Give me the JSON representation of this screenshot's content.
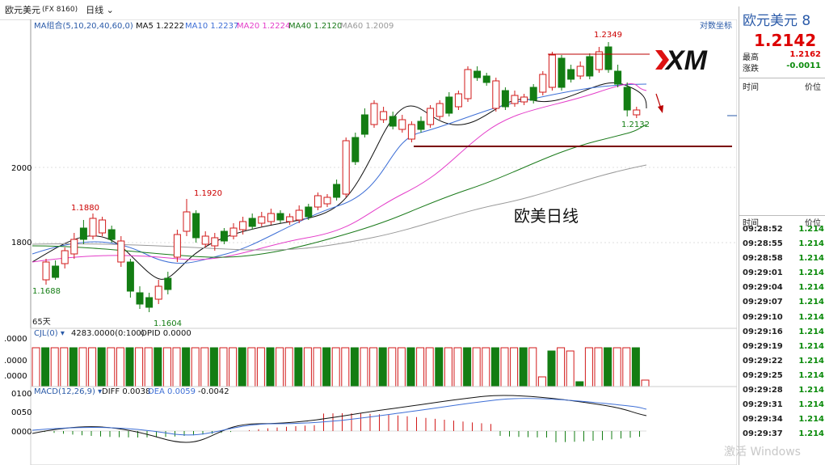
{
  "header": {
    "symbol": "欧元美元",
    "code": "(FX 8160)",
    "period": "日线",
    "period_arrow": "chevron-down-icon"
  },
  "ma_legend": {
    "group": "MA组合(5,10,20,40,60,0)",
    "ma5": "MA5 1.2222",
    "ma10": "MA10 1.2237",
    "ma20": "MA20 1.2224",
    "ma40": "MA40 1.2120",
    "ma60": "MA60 1.2009",
    "log_coord": "对数坐标"
  },
  "colors": {
    "up": "#d21a1a",
    "down": "#137d13",
    "ma5": "#111111",
    "ma10": "#3e6fd6",
    "ma20": "#e43dc9",
    "ma40": "#1a7a1a",
    "ma60": "#999999",
    "accent": "#2a5aa8"
  },
  "price_labels": {
    "axis_2000": "2000",
    "axis_1800": "1800",
    "high_1880": "1.1880",
    "high_1920": "1.1920",
    "high_2349": "1.2349",
    "low_1688": "1.1688",
    "low_1604": "1.1604",
    "low_2132": "1.2132",
    "days": "65天",
    "annotation": "欧美日线"
  },
  "logo": {
    "text": "XM"
  },
  "cjl": {
    "legend": "CJL(0) ▾",
    "value": "4283.0000(0:100)",
    "opid": "OPID 0.0000",
    "axis": [
      ".0000",
      ".0000",
      ".0000"
    ]
  },
  "macd": {
    "legend": "MACD(12,26,9) ▾",
    "diff": "DIFF 0.0038",
    "dea": "DEA 0.0059",
    "macd": "-0.0042",
    "axis": [
      "0100",
      "0050",
      "0000"
    ]
  },
  "quote_panel": {
    "title": "欧元美元  8",
    "price": "1.2142",
    "high_label": "最高",
    "high_value": "1.2162",
    "change_label": "涨跌",
    "change_value": "-0.0011",
    "col_time": "时间",
    "col_price": "价位",
    "ticks": [
      {
        "time": "09:28:52",
        "price": "1.214"
      },
      {
        "time": "09:28:55",
        "price": "1.214"
      },
      {
        "time": "09:28:58",
        "price": "1.214"
      },
      {
        "time": "09:29:01",
        "price": "1.214"
      },
      {
        "time": "09:29:04",
        "price": "1.214"
      },
      {
        "time": "09:29:07",
        "price": "1.214"
      },
      {
        "time": "09:29:10",
        "price": "1.214"
      },
      {
        "time": "09:29:16",
        "price": "1.214"
      },
      {
        "time": "09:29:19",
        "price": "1.214"
      },
      {
        "time": "09:29:22",
        "price": "1.214"
      },
      {
        "time": "09:29:25",
        "price": "1.214"
      },
      {
        "time": "09:29:28",
        "price": "1.214"
      },
      {
        "time": "09:29:31",
        "price": "1.214"
      },
      {
        "time": "09:29:34",
        "price": "1.214"
      },
      {
        "time": "09:29:37",
        "price": "1.214"
      }
    ]
  },
  "watermark": "激活 Windows"
}
